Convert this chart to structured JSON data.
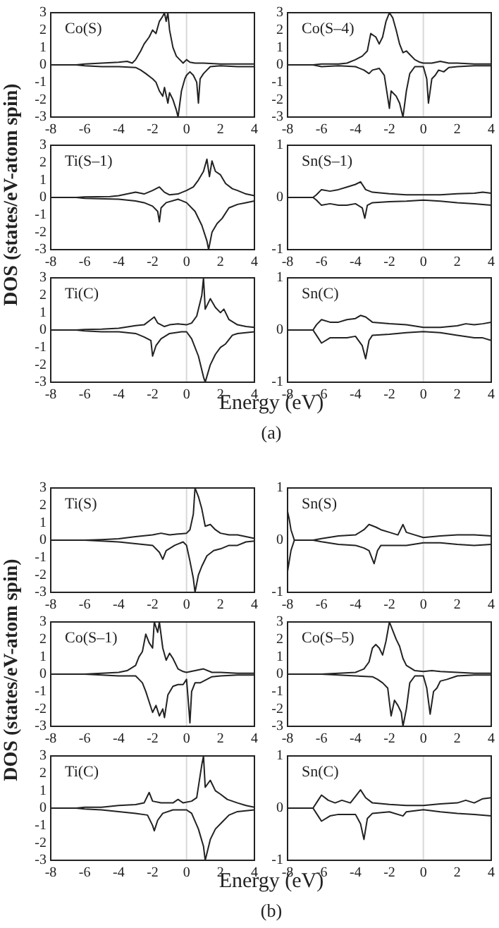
{
  "chart_data": [
    {
      "type": "line",
      "title": "Co(S)",
      "ylabel": "DOS (states/eV-atom spin)",
      "xlim": [
        -8,
        4
      ],
      "ylim": [
        -3,
        3
      ],
      "xticks": [
        -8,
        -6,
        -4,
        -2,
        0,
        2,
        4
      ],
      "yticks": [
        -3,
        -2,
        -1,
        0,
        1,
        2,
        3
      ],
      "ref_lines": [
        {
          "axis": "x",
          "value": 0,
          "color": "#d8d8d8"
        }
      ],
      "series": [
        {
          "color": "#222222",
          "x": [
            -8,
            -6.5,
            -6,
            -5,
            -4,
            -3.5,
            -3.2,
            -3,
            -2.7,
            -2.5,
            -2.2,
            -2,
            -1.8,
            -1.6,
            -1.4,
            -1.3,
            -1.2,
            -1.1,
            -1,
            -0.8,
            -0.6,
            -0.4,
            -0.2,
            0,
            0.2,
            0.5,
            1,
            2,
            3,
            4
          ],
          "values": [
            0,
            0,
            0.05,
            0.1,
            0.15,
            0.2,
            0.1,
            0.3,
            0.8,
            1.2,
            1.6,
            2,
            1.8,
            2.5,
            2.8,
            3,
            2.5,
            3,
            2,
            1,
            0.5,
            0.3,
            0.1,
            0.3,
            0.15,
            0.1,
            0.1,
            0.05,
            0.05,
            0.05
          ]
        },
        {
          "color": "#222222",
          "x": [
            -8,
            -6.5,
            -6,
            -5,
            -4,
            -3,
            -2.7,
            -2.4,
            -2,
            -1.8,
            -1.6,
            -1.4,
            -1.3,
            -1.1,
            -1,
            -0.8,
            -0.6,
            -0.5,
            -0.3,
            -0.1,
            0,
            0.2,
            0.4,
            0.6,
            0.7,
            0.8,
            1,
            1.2,
            1.4,
            2,
            3,
            4
          ],
          "values": [
            0,
            0,
            -0.05,
            -0.1,
            -0.1,
            -0.15,
            -0.3,
            -0.5,
            -0.8,
            -1,
            -1.5,
            -1.8,
            -1.3,
            -2.2,
            -1.6,
            -2,
            -2.6,
            -3,
            -1.5,
            -0.8,
            -0.6,
            -0.4,
            -0.6,
            -1,
            -2.2,
            -0.8,
            -0.5,
            -0.3,
            -0.1,
            -0.05,
            -0.1,
            -0.1
          ]
        }
      ]
    },
    {
      "type": "line",
      "title": "Co(S–4)",
      "xlim": [
        -8,
        4
      ],
      "ylim": [
        -3,
        3
      ],
      "xticks": [
        -8,
        -6,
        -4,
        -2,
        0,
        2,
        4
      ],
      "yticks": [
        -3,
        -2,
        -1,
        0,
        1,
        2,
        3
      ],
      "ref_lines": [
        {
          "axis": "x",
          "value": 0,
          "color": "#d8d8d8"
        }
      ],
      "series": [
        {
          "color": "#222222",
          "x": [
            -8,
            -6.5,
            -6,
            -5,
            -4.5,
            -4,
            -3.6,
            -3.3,
            -3.1,
            -2.8,
            -2.6,
            -2.4,
            -2.2,
            -2,
            -1.8,
            -1.6,
            -1.4,
            -1.2,
            -1,
            -0.8,
            -0.5,
            -0.2,
            0,
            0.5,
            1,
            1.5,
            2,
            3,
            4
          ],
          "values": [
            0,
            0,
            0.05,
            0.05,
            0.1,
            0.3,
            0.5,
            0.8,
            1.8,
            1.6,
            1.2,
            1.6,
            2.5,
            3,
            2.7,
            2,
            1.2,
            0.7,
            0.8,
            0.6,
            0.3,
            0.15,
            0.1,
            0.1,
            0.2,
            0.1,
            0.1,
            0.05,
            0.05
          ]
        },
        {
          "color": "#222222",
          "x": [
            -8,
            -6.5,
            -6,
            -5,
            -4,
            -3.5,
            -3.2,
            -3,
            -2.6,
            -2.3,
            -2,
            -1.9,
            -1.6,
            -1.4,
            -1.2,
            -1,
            -0.8,
            -0.5,
            0,
            0.2,
            0.3,
            0.5,
            0.7,
            0.9,
            1.2,
            1.5,
            2,
            3,
            4
          ],
          "values": [
            0,
            0,
            -0.1,
            -0.05,
            -0.1,
            -0.3,
            -0.5,
            -0.3,
            -0.2,
            -0.6,
            -2.5,
            -1.5,
            -1.8,
            -2.2,
            -3,
            -1.5,
            -0.5,
            -0.1,
            -0.1,
            -0.8,
            -2.2,
            -0.8,
            -0.6,
            -0.3,
            -0.4,
            -0.15,
            -0.1,
            -0.05,
            -0.05
          ]
        }
      ]
    },
    {
      "type": "line",
      "title": "Ti(S–1)",
      "xlim": [
        -8,
        4
      ],
      "ylim": [
        -3,
        3
      ],
      "xticks": [
        -8,
        -6,
        -4,
        -2,
        0,
        2,
        4
      ],
      "yticks": [
        -3,
        -2,
        -1,
        0,
        1,
        2,
        3
      ],
      "ref_lines": [
        {
          "axis": "x",
          "value": 0,
          "color": "#d8d8d8"
        }
      ],
      "series": [
        {
          "color": "#222222",
          "x": [
            -8,
            -6.5,
            -6,
            -4.5,
            -4,
            -3,
            -2.5,
            -2,
            -1.6,
            -1.3,
            -1,
            -0.5,
            0,
            0.4,
            0.7,
            1,
            1.2,
            1.35,
            1.5,
            1.7,
            2,
            2.3,
            2.7,
            3,
            3.5,
            4
          ],
          "values": [
            0,
            0,
            0.03,
            0.05,
            0.1,
            0.3,
            0.2,
            0.4,
            0.6,
            0.3,
            0.15,
            0.2,
            0.4,
            0.6,
            1,
            1.5,
            2.2,
            1.2,
            2.1,
            1.5,
            1.3,
            0.8,
            0.5,
            0.4,
            0.2,
            0.1
          ]
        },
        {
          "color": "#222222",
          "x": [
            -8,
            -6.5,
            -6,
            -4,
            -3,
            -2.5,
            -2,
            -1.7,
            -1.6,
            -1.5,
            -1.2,
            -0.5,
            0,
            0.5,
            0.9,
            1.2,
            1.3,
            1.5,
            1.8,
            2.1,
            2.5,
            3,
            3.5,
            4
          ],
          "values": [
            0,
            0,
            -0.05,
            -0.1,
            -0.2,
            -0.3,
            -0.5,
            -0.8,
            -1.4,
            -0.6,
            -0.3,
            -0.1,
            -0.3,
            -0.8,
            -1.6,
            -2.5,
            -3,
            -2,
            -1.5,
            -1.2,
            -0.6,
            -0.4,
            -0.3,
            -0.2
          ]
        }
      ]
    },
    {
      "type": "line",
      "title": "Sn(S–1)",
      "xlim": [
        -8,
        4
      ],
      "ylim": [
        -1,
        1
      ],
      "xticks": [
        -8,
        -6,
        -4,
        -2,
        0,
        2,
        4
      ],
      "yticks": [
        -1,
        0,
        1
      ],
      "ref_lines": [
        {
          "axis": "x",
          "value": 0,
          "color": "#d8d8d8"
        }
      ],
      "series": [
        {
          "color": "#222222",
          "x": [
            -8,
            -6.5,
            -6.3,
            -6,
            -5.5,
            -5,
            -4.5,
            -4,
            -3.7,
            -3.4,
            -3,
            -2,
            -1,
            0,
            1,
            2,
            3,
            3.5,
            4
          ],
          "values": [
            0,
            0,
            0.05,
            0.15,
            0.12,
            0.15,
            0.2,
            0.25,
            0.3,
            0.15,
            0.1,
            0.07,
            0.05,
            0.05,
            0.05,
            0.07,
            0.08,
            0.1,
            0.08
          ]
        },
        {
          "color": "#222222",
          "x": [
            -8,
            -6.5,
            -6.3,
            -6,
            -5.5,
            -5,
            -4.5,
            -4,
            -3.6,
            -3.45,
            -3.3,
            -3,
            -2,
            -1,
            0,
            1,
            2,
            3,
            4
          ],
          "values": [
            0,
            0,
            -0.05,
            -0.15,
            -0.12,
            -0.15,
            -0.15,
            -0.12,
            -0.2,
            -0.4,
            -0.15,
            -0.1,
            -0.08,
            -0.07,
            -0.05,
            -0.07,
            -0.1,
            -0.12,
            -0.15
          ]
        }
      ]
    },
    {
      "type": "line",
      "title": "Ti(C)",
      "xlabel": "Energy (eV)",
      "annotations": [
        "(a)"
      ],
      "xlim": [
        -8,
        4
      ],
      "ylim": [
        -3,
        3
      ],
      "xticks": [
        -8,
        -6,
        -4,
        -2,
        0,
        2,
        4
      ],
      "yticks": [
        -3,
        -2,
        -1,
        0,
        1,
        2,
        3
      ],
      "ref_lines": [
        {
          "axis": "x",
          "value": 0,
          "color": "#d8d8d8"
        }
      ],
      "series": [
        {
          "color": "#222222",
          "x": [
            -8,
            -6.5,
            -6,
            -5,
            -4,
            -3,
            -2.5,
            -2.1,
            -1.9,
            -1.7,
            -1.3,
            -1,
            -0.5,
            0,
            0.3,
            0.6,
            0.9,
            1,
            1.1,
            1.4,
            1.7,
            2,
            2.2,
            2.5,
            3,
            3.5,
            4
          ],
          "values": [
            0,
            0,
            0.03,
            0.05,
            0.1,
            0.25,
            0.3,
            0.6,
            0.75,
            0.4,
            0.2,
            0.3,
            0.35,
            0.3,
            0.4,
            0.8,
            2,
            3,
            1.2,
            1.8,
            1.3,
            1,
            1.2,
            0.6,
            0.3,
            0.2,
            0.15
          ]
        },
        {
          "color": "#222222",
          "x": [
            -8,
            -6.5,
            -6,
            -5,
            -4,
            -3,
            -2.5,
            -2.1,
            -2,
            -1.8,
            -1.5,
            -1,
            -0.3,
            0,
            0.3,
            0.7,
            1,
            1.1,
            1.4,
            1.7,
            2,
            2.3,
            2.7,
            3,
            4
          ],
          "values": [
            0,
            0,
            -0.05,
            -0.1,
            -0.1,
            -0.2,
            -0.4,
            -0.6,
            -1.5,
            -0.9,
            -0.5,
            -0.2,
            -0.1,
            -0.1,
            -0.5,
            -1.5,
            -2.7,
            -3,
            -2,
            -1.4,
            -1,
            -0.8,
            -0.3,
            -0.2,
            -0.1
          ]
        }
      ]
    },
    {
      "type": "line",
      "title": "Sn(C)",
      "xlim": [
        -8,
        4
      ],
      "ylim": [
        -1,
        1
      ],
      "xticks": [
        -8,
        -6,
        -4,
        -2,
        0,
        2,
        4
      ],
      "yticks": [
        -1,
        0,
        1
      ],
      "ref_lines": [
        {
          "axis": "x",
          "value": 0,
          "color": "#d8d8d8"
        }
      ],
      "series": [
        {
          "color": "#222222",
          "x": [
            -8,
            -6.5,
            -6.3,
            -6,
            -5.5,
            -5,
            -4.5,
            -4,
            -3.7,
            -3.4,
            -3,
            -2,
            -1,
            0,
            1,
            2,
            2.5,
            3,
            3.5,
            4
          ],
          "values": [
            0,
            0,
            0.1,
            0.2,
            0.15,
            0.15,
            0.2,
            0.22,
            0.28,
            0.25,
            0.15,
            0.12,
            0.1,
            0.05,
            0.05,
            0.08,
            0.12,
            0.1,
            0.12,
            0.15
          ]
        },
        {
          "color": "#222222",
          "x": [
            -8,
            -6.5,
            -6.3,
            -6,
            -5.5,
            -5,
            -4.5,
            -4,
            -3.6,
            -3.4,
            -3.2,
            -3,
            -2,
            -1,
            0,
            1,
            2,
            3,
            3.5,
            4
          ],
          "values": [
            0,
            0,
            -0.1,
            -0.25,
            -0.15,
            -0.15,
            -0.15,
            -0.12,
            -0.3,
            -0.55,
            -0.2,
            -0.1,
            -0.08,
            -0.05,
            -0.03,
            -0.05,
            -0.1,
            -0.15,
            -0.15,
            -0.2
          ]
        }
      ]
    },
    {
      "type": "line",
      "title": "Ti(S)",
      "ylabel": "DOS (states/eV-atom spin)",
      "xlim": [
        -8,
        4
      ],
      "ylim": [
        -3,
        3
      ],
      "xticks": [
        -8,
        -6,
        -4,
        -2,
        0,
        2,
        4
      ],
      "yticks": [
        -3,
        -2,
        -1,
        0,
        1,
        2,
        3
      ],
      "ref_lines": [
        {
          "axis": "x",
          "value": 0,
          "color": "#d8d8d8"
        }
      ],
      "series": [
        {
          "color": "#222222",
          "x": [
            -8,
            -6,
            -5,
            -4,
            -3,
            -2,
            -1.5,
            -1,
            -0.5,
            0,
            0.2,
            0.4,
            0.5,
            0.7,
            0.9,
            1.1,
            1.4,
            1.7,
            2,
            2.5,
            3,
            3.5,
            4
          ],
          "values": [
            0,
            0,
            0.03,
            0.08,
            0.2,
            0.3,
            0.4,
            0.3,
            0.35,
            0.4,
            0.6,
            1.5,
            3,
            2.5,
            1.8,
            0.8,
            0.9,
            0.6,
            0.4,
            0.3,
            0.3,
            0.2,
            0.1
          ]
        },
        {
          "color": "#222222",
          "x": [
            -8,
            -6,
            -5,
            -4,
            -3,
            -2,
            -1.6,
            -1.4,
            -1.2,
            -0.7,
            -0.2,
            0,
            0.2,
            0.4,
            0.5,
            0.7,
            0.9,
            1.2,
            1.6,
            2,
            2.5,
            3,
            3.5,
            4
          ],
          "values": [
            0,
            0,
            -0.05,
            -0.1,
            -0.2,
            -0.3,
            -0.7,
            -1.1,
            -0.6,
            -0.3,
            -0.1,
            -0.3,
            -1.2,
            -2.2,
            -3,
            -2,
            -1.5,
            -0.9,
            -0.6,
            -0.5,
            -0.3,
            -0.3,
            -0.1,
            -0.05
          ]
        }
      ]
    },
    {
      "type": "line",
      "title": "Sn(S)",
      "xlim": [
        -8,
        4
      ],
      "ylim": [
        -1,
        1
      ],
      "xticks": [
        -8,
        -6,
        -4,
        -2,
        0,
        2,
        4
      ],
      "yticks": [
        -1,
        0,
        1
      ],
      "ref_lines": [
        {
          "axis": "x",
          "value": 0,
          "color": "#d8d8d8"
        }
      ],
      "series": [
        {
          "color": "#222222",
          "x": [
            -8,
            -7.9,
            -7.8,
            -7.6,
            -6.5,
            -6,
            -5,
            -4,
            -3.5,
            -3.2,
            -2.8,
            -2.5,
            -2,
            -1.5,
            -1.2,
            -1,
            -0.5,
            0,
            1,
            2,
            3,
            4
          ],
          "values": [
            0.55,
            0.4,
            0.2,
            0,
            0,
            0.03,
            0.08,
            0.1,
            0.2,
            0.3,
            0.25,
            0.2,
            0.15,
            0.1,
            0.3,
            0.15,
            0.1,
            0.05,
            0.08,
            0.1,
            0.1,
            0.08
          ]
        },
        {
          "color": "#222222",
          "x": [
            -8,
            -7.9,
            -7.8,
            -7.6,
            -6.5,
            -6,
            -5,
            -4,
            -3.5,
            -3.2,
            -2.9,
            -2.7,
            -2.5,
            -2,
            -1,
            0,
            1,
            2,
            3,
            4
          ],
          "values": [
            -0.6,
            -0.4,
            -0.2,
            0,
            0,
            -0.03,
            -0.08,
            -0.1,
            -0.15,
            -0.2,
            -0.45,
            -0.2,
            -0.1,
            -0.1,
            -0.1,
            -0.05,
            -0.05,
            -0.08,
            -0.1,
            -0.08
          ]
        }
      ]
    },
    {
      "type": "line",
      "title": "Co(S–1)",
      "xlim": [
        -8,
        4
      ],
      "ylim": [
        -3,
        3
      ],
      "xticks": [
        -8,
        -6,
        -4,
        -2,
        0,
        2,
        4
      ],
      "yticks": [
        -3,
        -2,
        -1,
        0,
        1,
        2,
        3
      ],
      "ref_lines": [
        {
          "axis": "x",
          "value": 0,
          "color": "#d8d8d8"
        }
      ],
      "series": [
        {
          "color": "#222222",
          "x": [
            -8,
            -6,
            -5,
            -4,
            -3.5,
            -3,
            -2.8,
            -2.6,
            -2.4,
            -2.2,
            -2,
            -1.9,
            -1.7,
            -1.6,
            -1.4,
            -1.2,
            -1,
            -0.8,
            -0.5,
            -0.2,
            0,
            0.5,
            1,
            1.5,
            2,
            3,
            4
          ],
          "values": [
            0,
            0,
            0.05,
            0.1,
            0.2,
            0.5,
            1,
            1.3,
            2.3,
            1.8,
            1.5,
            3,
            2.4,
            3,
            1.5,
            0.8,
            1.2,
            0.9,
            0.3,
            0.15,
            0.1,
            0.2,
            0.3,
            0.1,
            0.1,
            0.05,
            0.05
          ]
        },
        {
          "color": "#222222",
          "x": [
            -8,
            -6,
            -5,
            -4,
            -3,
            -2.8,
            -2.6,
            -2.4,
            -2.2,
            -2,
            -1.8,
            -1.6,
            -1.4,
            -1.3,
            -1.1,
            -0.8,
            -0.5,
            -0.2,
            0,
            0.1,
            0.2,
            0.3,
            0.5,
            0.8,
            1.2,
            1.5,
            2,
            3,
            4
          ],
          "values": [
            0,
            0,
            -0.05,
            -0.1,
            -0.1,
            -0.3,
            -0.5,
            -1,
            -1.6,
            -2.2,
            -1.8,
            -2.4,
            -2,
            -2.5,
            -1.2,
            -0.7,
            -0.6,
            -0.6,
            -0.3,
            -1.5,
            -2.8,
            -1,
            -0.5,
            -0.5,
            -0.3,
            -0.15,
            -0.1,
            -0.05,
            -0.05
          ]
        }
      ]
    },
    {
      "type": "line",
      "title": "Co(S–5)",
      "xlim": [
        -8,
        4
      ],
      "ylim": [
        -3,
        3
      ],
      "xticks": [
        -8,
        -6,
        -4,
        -2,
        0,
        2,
        4
      ],
      "yticks": [
        -3,
        -2,
        -1,
        0,
        1,
        2,
        3
      ],
      "ref_lines": [
        {
          "axis": "x",
          "value": 0,
          "color": "#d8d8d8"
        }
      ],
      "series": [
        {
          "color": "#222222",
          "x": [
            -8,
            -6,
            -5,
            -4,
            -3.5,
            -3.2,
            -3,
            -2.8,
            -2.6,
            -2.4,
            -2.2,
            -2,
            -1.8,
            -1.6,
            -1.4,
            -1.2,
            -1,
            -0.5,
            0,
            0.5,
            1,
            2,
            3,
            4
          ],
          "values": [
            0,
            0,
            0.05,
            0.1,
            0.3,
            0.7,
            1.5,
            1.7,
            1.5,
            1.1,
            1.9,
            3,
            2.5,
            2,
            1.6,
            0.9,
            0.5,
            0.2,
            0.15,
            0.2,
            0.15,
            0.1,
            0.05,
            0.05
          ]
        },
        {
          "color": "#222222",
          "x": [
            -8,
            -6,
            -5,
            -4,
            -3,
            -2.7,
            -2.4,
            -2.1,
            -1.9,
            -1.7,
            -1.5,
            -1.3,
            -1.2,
            -1,
            -0.8,
            -0.5,
            0,
            0.2,
            0.4,
            0.6,
            0.8,
            1,
            1.4,
            2,
            3,
            4
          ],
          "values": [
            0,
            0,
            -0.05,
            -0.1,
            -0.15,
            -0.3,
            -0.5,
            -0.8,
            -2.4,
            -1.5,
            -1.8,
            -2.2,
            -3,
            -2,
            -0.5,
            -0.1,
            -0.1,
            -0.8,
            -2.3,
            -1,
            -0.8,
            -0.4,
            -0.3,
            -0.1,
            -0.05,
            -0.05
          ]
        }
      ]
    },
    {
      "type": "line",
      "title": "Ti(C)",
      "xlabel": "Energy (eV)",
      "annotations": [
        "(b)"
      ],
      "xlim": [
        -8,
        4
      ],
      "ylim": [
        -3,
        3
      ],
      "xticks": [
        -8,
        -6,
        -4,
        -2,
        0,
        2,
        4
      ],
      "yticks": [
        -3,
        -2,
        -1,
        0,
        1,
        2,
        3
      ],
      "ref_lines": [
        {
          "axis": "x",
          "value": 0,
          "color": "#d8d8d8"
        }
      ],
      "series": [
        {
          "color": "#222222",
          "x": [
            -8,
            -6.5,
            -6,
            -5,
            -4,
            -3,
            -2.5,
            -2.2,
            -2,
            -1.5,
            -0.8,
            -0.5,
            -0.2,
            0.3,
            0.6,
            0.9,
            1,
            1.1,
            1.4,
            1.7,
            2,
            2.4,
            3,
            3.5,
            4
          ],
          "values": [
            0,
            0,
            0.05,
            0.05,
            0.15,
            0.2,
            0.3,
            0.9,
            0.4,
            0.3,
            0.3,
            0.5,
            0.3,
            0.4,
            0.6,
            2.5,
            3,
            1.2,
            1.6,
            1,
            0.8,
            0.5,
            0.3,
            0.15,
            0.05
          ]
        },
        {
          "color": "#222222",
          "x": [
            -8,
            -6.5,
            -6,
            -5,
            -4,
            -3,
            -2.3,
            -2,
            -1.9,
            -1.7,
            -1.4,
            -0.8,
            0,
            0.3,
            0.7,
            1,
            1.1,
            1.4,
            1.7,
            2.1,
            2.5,
            3,
            4
          ],
          "values": [
            0,
            0,
            -0.05,
            -0.1,
            -0.2,
            -0.3,
            -0.4,
            -1,
            -1.3,
            -0.7,
            -0.3,
            -0.1,
            -0.1,
            -0.3,
            -1.2,
            -2.2,
            -3,
            -1.8,
            -1.2,
            -0.8,
            -0.4,
            -0.2,
            -0.1
          ]
        }
      ]
    },
    {
      "type": "line",
      "title": "Sn(C)",
      "xlim": [
        -8,
        4
      ],
      "ylim": [
        -1,
        1
      ],
      "xticks": [
        -8,
        -6,
        -4,
        -2,
        0,
        2,
        4
      ],
      "yticks": [
        -1,
        0,
        1
      ],
      "ref_lines": [
        {
          "axis": "x",
          "value": 0,
          "color": "#d8d8d8"
        }
      ],
      "series": [
        {
          "color": "#222222",
          "x": [
            -8,
            -6.5,
            -6.2,
            -6,
            -5.6,
            -5.2,
            -4.8,
            -4.3,
            -3.7,
            -3.4,
            -3,
            -2,
            -1,
            0,
            1,
            2,
            2.5,
            3,
            3.5,
            4
          ],
          "values": [
            0,
            0,
            0.15,
            0.25,
            0.15,
            0.1,
            0.15,
            0.1,
            0.35,
            0.2,
            0.1,
            0.07,
            0.05,
            0.05,
            0.08,
            0.1,
            0.15,
            0.1,
            0.18,
            0.2
          ]
        },
        {
          "color": "#222222",
          "x": [
            -8,
            -6.5,
            -6.2,
            -6,
            -5.5,
            -5,
            -4,
            -3.7,
            -3.5,
            -3.3,
            -3,
            -2,
            -1.2,
            -1,
            0,
            1,
            2,
            3,
            4
          ],
          "values": [
            0,
            0,
            -0.15,
            -0.25,
            -0.15,
            -0.12,
            -0.12,
            -0.3,
            -0.6,
            -0.2,
            -0.1,
            -0.07,
            -0.15,
            -0.07,
            -0.03,
            -0.07,
            -0.1,
            -0.12,
            -0.15
          ]
        }
      ]
    }
  ]
}
